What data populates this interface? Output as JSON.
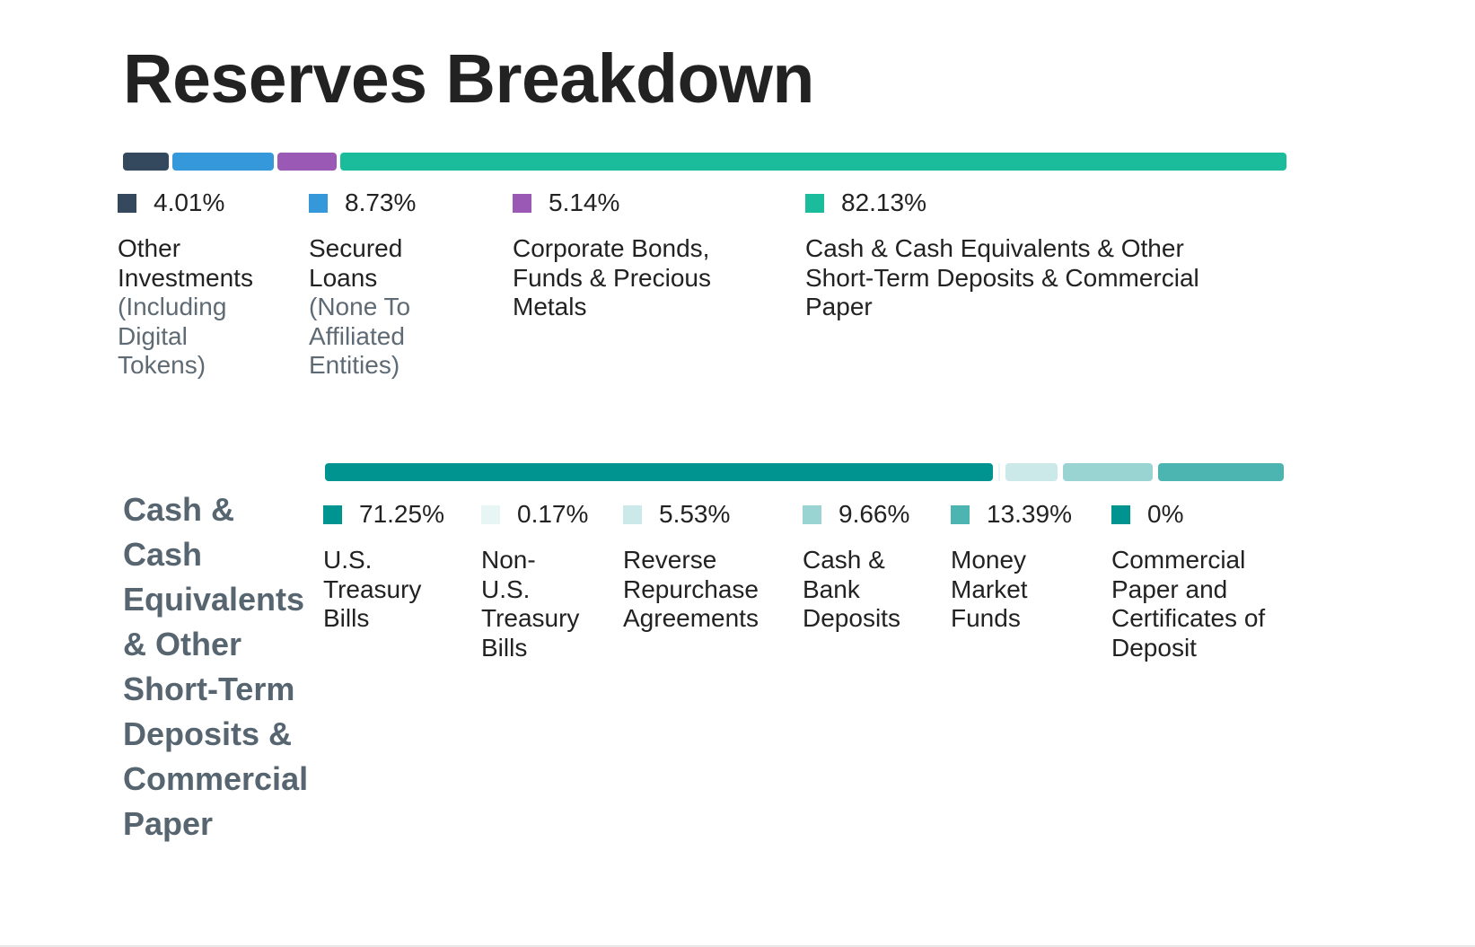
{
  "title": "Reserves Breakdown",
  "chart_data": [
    {
      "type": "bar",
      "stacked": true,
      "orientation": "horizontal",
      "title": "",
      "series": [
        {
          "label": "Other Investments",
          "sublabel": "(Including Digital Tokens)",
          "value": 4.01,
          "value_text": "4.01%",
          "color": "#34495e"
        },
        {
          "label": "Secured Loans",
          "sublabel": "(None To Affiliated Entities)",
          "value": 8.73,
          "value_text": "8.73%",
          "color": "#3498db"
        },
        {
          "label": "Corporate Bonds, Funds & Precious Metals",
          "sublabel": "",
          "value": 5.14,
          "value_text": "5.14%",
          "color": "#9b59b6"
        },
        {
          "label": "Cash & Cash Equivalents & Other Short-Term Deposits & Commercial Paper",
          "sublabel": "",
          "value": 82.13,
          "value_text": "82.13%",
          "color": "#1abc9c"
        }
      ]
    },
    {
      "type": "bar",
      "stacked": true,
      "orientation": "horizontal",
      "title": "Cash & Cash Equivalents & Other Short-Term Deposits & Commercial Paper",
      "series": [
        {
          "label": "U.S. Treasury Bills",
          "value": 71.25,
          "value_text": "71.25%",
          "color": "#009490"
        },
        {
          "label": "Non-U.S. Treasury Bills",
          "value": 0.17,
          "value_text": "0.17%",
          "color": "#e8f5f5"
        },
        {
          "label": "Reverse Repurchase Agreements",
          "value": 5.53,
          "value_text": "5.53%",
          "color": "#cce9ea"
        },
        {
          "label": "Cash & Bank Deposits",
          "value": 9.66,
          "value_text": "9.66%",
          "color": "#99d4d3"
        },
        {
          "label": "Money Market Funds",
          "value": 13.39,
          "value_text": "13.39%",
          "color": "#4db5b1"
        },
        {
          "label": "Commercial Paper and Certificates of Deposit",
          "value": 0,
          "value_text": "0%",
          "color": "#009490"
        }
      ]
    }
  ]
}
